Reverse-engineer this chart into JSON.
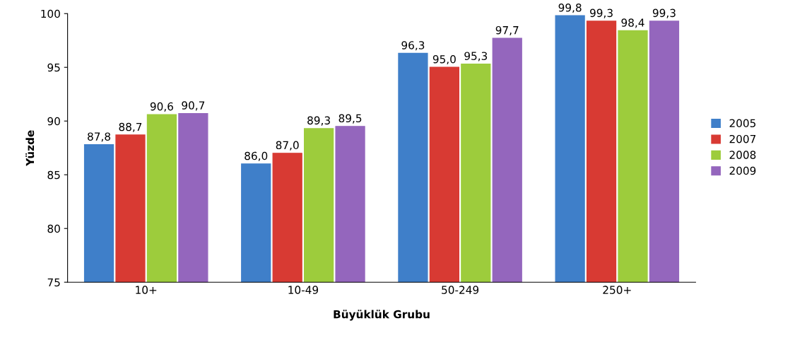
{
  "chart_data": {
    "type": "bar",
    "xlabel": "Büyüklük Grubu",
    "ylabel": "Yüzde",
    "categories": [
      "10+",
      "10-49",
      "50-249",
      "250+"
    ],
    "series": [
      {
        "name": "2005",
        "color": "#3f7fc9",
        "values": [
          87.8,
          86.0,
          96.3,
          99.8
        ],
        "value_labels": [
          "87,8",
          "86,0",
          "96,3",
          "99,8"
        ]
      },
      {
        "name": "2007",
        "color": "#d83a33",
        "values": [
          88.7,
          87.0,
          95.0,
          99.3
        ],
        "value_labels": [
          "88,7",
          "87,0",
          "95,0",
          "99,3"
        ]
      },
      {
        "name": "2008",
        "color": "#9dcc3c",
        "values": [
          90.6,
          89.3,
          95.3,
          98.4
        ],
        "value_labels": [
          "90,6",
          "89,3",
          "95,3",
          "98,4"
        ]
      },
      {
        "name": "2009",
        "color": "#9466bd",
        "values": [
          90.7,
          89.5,
          97.7,
          99.3
        ],
        "value_labels": [
          "90,7",
          "89,5",
          "97,7",
          "99,3"
        ]
      }
    ],
    "ylim": [
      75,
      100
    ],
    "yticks": [
      75,
      80,
      85,
      90,
      95,
      100
    ],
    "grid": false,
    "legend": "right"
  }
}
